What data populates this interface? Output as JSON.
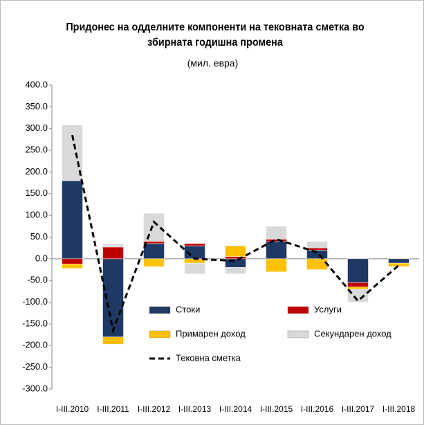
{
  "chart_data": {
    "type": "stacked-bar-line",
    "title": "Придонес на одделните компоненти на тековната сметка во збирната годишна промена",
    "subtitle": "(мил. евра)",
    "categories": [
      "I-III.2010",
      "I-III.2011",
      "I-III.2012",
      "I-III.2013",
      "I-III.2014",
      "I-III.2015",
      "I-III.2016",
      "I-III.2017",
      "I-III.2018"
    ],
    "series": [
      {
        "name": "Стоки",
        "color": "#1f3864",
        "values": [
          180,
          -180,
          35,
          30,
          -20,
          40,
          20,
          -55,
          -10
        ]
      },
      {
        "name": "Услуги",
        "color": "#c00000",
        "values": [
          -12,
          27,
          5,
          5,
          5,
          5,
          5,
          -10,
          0
        ]
      },
      {
        "name": "Примарен доход",
        "color": "#ffc000",
        "values": [
          -10,
          -17,
          -18,
          -10,
          25,
          -30,
          -25,
          -5,
          -8
        ]
      },
      {
        "name": "Секундарен доход",
        "color": "#d9d9d9",
        "values": [
          128,
          8,
          65,
          -25,
          -15,
          30,
          15,
          -30,
          0
        ]
      }
    ],
    "line": {
      "name": "Тековна сметка",
      "color": "#000000",
      "values": [
        285,
        -165,
        85,
        0,
        -5,
        45,
        15,
        -97,
        -15
      ]
    },
    "ylim": [
      -300,
      400
    ],
    "yticks": [
      {
        "value": 400,
        "label": "400.0"
      },
      {
        "value": 350,
        "label": "350.0"
      },
      {
        "value": 300,
        "label": "300.0"
      },
      {
        "value": 250,
        "label": "250.0"
      },
      {
        "value": 200,
        "label": "200.0"
      },
      {
        "value": 150,
        "label": "150.0"
      },
      {
        "value": 100,
        "label": "100.0"
      },
      {
        "value": 50,
        "label": "50.0"
      },
      {
        "value": 0,
        "label": "0.0"
      },
      {
        "value": -50,
        "label": "-50.0"
      },
      {
        "value": -100,
        "label": "-100.0"
      },
      {
        "value": -150,
        "label": "-150.0"
      },
      {
        "value": -200,
        "label": "-200.0"
      },
      {
        "value": -250,
        "label": "-250.0"
      },
      {
        "value": -300,
        "label": "-300.0"
      }
    ],
    "grid": false
  }
}
